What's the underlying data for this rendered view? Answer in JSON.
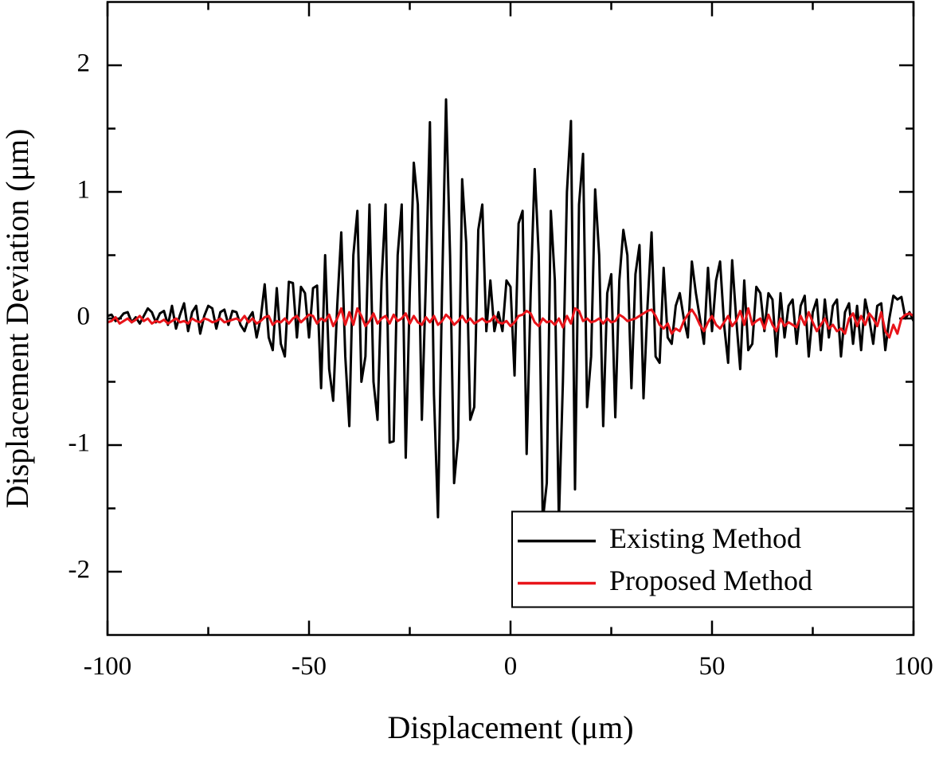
{
  "chart_data": {
    "type": "line",
    "xlabel": "Displacement (μm)",
    "ylabel": "Displacement Deviation (μm)",
    "xlim": [
      -100,
      100
    ],
    "xticks": [
      -100,
      -50,
      0,
      50,
      100
    ],
    "xminor": [
      -75,
      -25,
      25,
      75
    ],
    "ylim": [
      -2.5,
      2.5
    ],
    "yticks": [
      -2,
      -1,
      0,
      1,
      2
    ],
    "yminor": [
      -1.5,
      -0.5,
      0.5,
      1.5
    ],
    "legend": "lower right",
    "x": [
      -100,
      -99,
      -98,
      -97,
      -96,
      -95,
      -94,
      -93,
      -92,
      -91,
      -90,
      -89,
      -88,
      -87,
      -86,
      -85,
      -84,
      -83,
      -82,
      -81,
      -80,
      -79,
      -78,
      -77,
      -76,
      -75,
      -74,
      -73,
      -72,
      -71,
      -70,
      -69,
      -68,
      -67,
      -66,
      -65,
      -64,
      -63,
      -62,
      -61,
      -60,
      -59,
      -58,
      -57,
      -56,
      -55,
      -54,
      -53,
      -52,
      -51,
      -50,
      -49,
      -48,
      -47,
      -46,
      -45,
      -44,
      -43,
      -42,
      -41,
      -40,
      -39,
      -38,
      -37,
      -36,
      -35,
      -34,
      -33,
      -32,
      -31,
      -30,
      -29,
      -28,
      -27,
      -26,
      -25,
      -24,
      -23,
      -22,
      -21,
      -20,
      -19,
      -18,
      -17,
      -16,
      -15,
      -14,
      -13,
      -12,
      -11,
      -10,
      -9,
      -8,
      -7,
      -6,
      -5,
      -4,
      -3,
      -2,
      -1,
      0,
      1,
      2,
      3,
      4,
      5,
      6,
      7,
      8,
      9,
      10,
      11,
      12,
      13,
      14,
      15,
      16,
      17,
      18,
      19,
      20,
      21,
      22,
      23,
      24,
      25,
      26,
      27,
      28,
      29,
      30,
      31,
      32,
      33,
      34,
      35,
      36,
      37,
      38,
      39,
      40,
      41,
      42,
      43,
      44,
      45,
      46,
      47,
      48,
      49,
      50,
      51,
      52,
      53,
      54,
      55,
      56,
      57,
      58,
      59,
      60,
      61,
      62,
      63,
      64,
      65,
      66,
      67,
      68,
      69,
      70,
      71,
      72,
      73,
      74,
      75,
      76,
      77,
      78,
      79,
      80,
      81,
      82,
      83,
      84,
      85,
      86,
      87,
      88,
      89,
      90,
      91,
      92,
      93,
      94,
      95,
      96,
      97,
      98,
      99,
      100
    ],
    "series": [
      {
        "name": "Existing Method",
        "color": "#000000",
        "values": [
          0.02,
          0.03,
          -0.02,
          0.0,
          0.04,
          0.05,
          -0.03,
          0.01,
          -0.04,
          0.02,
          0.08,
          0.05,
          -0.03,
          0.04,
          0.06,
          -0.05,
          0.1,
          -0.08,
          0.03,
          0.12,
          -0.1,
          0.05,
          0.1,
          -0.12,
          0.02,
          0.1,
          0.08,
          -0.08,
          0.05,
          0.07,
          -0.05,
          0.06,
          0.05,
          -0.05,
          -0.1,
          0.0,
          0.05,
          -0.15,
          0.0,
          0.27,
          -0.15,
          -0.25,
          0.24,
          -0.2,
          -0.3,
          0.29,
          0.28,
          -0.15,
          0.25,
          0.2,
          -0.15,
          0.24,
          0.26,
          -0.55,
          0.5,
          -0.4,
          -0.65,
          0.1,
          0.68,
          -0.3,
          -0.85,
          0.5,
          0.85,
          -0.5,
          -0.3,
          0.9,
          -0.5,
          -0.8,
          0.3,
          0.9,
          -0.98,
          -0.97,
          0.5,
          0.9,
          -1.1,
          0.2,
          1.23,
          0.9,
          -0.8,
          0.3,
          1.55,
          -0.6,
          -1.57,
          0.2,
          1.73,
          0.5,
          -1.3,
          -0.95,
          1.1,
          0.6,
          -0.8,
          -0.7,
          0.7,
          0.9,
          -0.1,
          0.3,
          -0.1,
          0.05,
          -0.1,
          0.3,
          0.25,
          -0.45,
          0.75,
          0.85,
          -1.07,
          0.2,
          1.18,
          0.5,
          -1.6,
          -1.3,
          0.85,
          0.3,
          -1.6,
          -0.5,
          1.0,
          1.56,
          -1.35,
          0.9,
          1.3,
          -0.7,
          -0.3,
          1.02,
          0.5,
          -0.85,
          0.2,
          0.35,
          -0.78,
          0.3,
          0.7,
          0.5,
          -0.55,
          0.35,
          0.58,
          -0.63,
          0.1,
          0.68,
          -0.3,
          -0.35,
          0.4,
          -0.15,
          -0.2,
          0.1,
          0.2,
          0.0,
          -0.15,
          0.45,
          0.2,
          0.0,
          -0.2,
          0.4,
          -0.1,
          0.3,
          0.45,
          -0.05,
          -0.35,
          0.46,
          0.0,
          -0.4,
          0.3,
          -0.25,
          -0.2,
          0.25,
          0.2,
          -0.1,
          0.2,
          0.15,
          -0.3,
          0.2,
          -0.15,
          0.1,
          0.15,
          -0.2,
          0.1,
          0.18,
          -0.3,
          0.05,
          0.15,
          -0.25,
          0.15,
          -0.15,
          0.1,
          0.15,
          -0.3,
          0.05,
          0.12,
          -0.2,
          0.1,
          -0.25,
          0.15,
          0.0,
          -0.2,
          0.1,
          0.12,
          -0.25,
          0.0,
          0.18,
          0.15,
          0.17,
          0.0,
          0.05,
          -0.02
        ]
      },
      {
        "name": "Proposed Method",
        "color": "#e8141a",
        "values": [
          -0.03,
          -0.02,
          0.01,
          -0.04,
          -0.02,
          0.0,
          -0.03,
          -0.01,
          0.02,
          -0.02,
          0.0,
          -0.04,
          -0.02,
          -0.03,
          -0.01,
          -0.04,
          -0.02,
          0.0,
          -0.03,
          -0.02,
          -0.04,
          0.0,
          -0.02,
          -0.03,
          0.0,
          -0.01,
          -0.03,
          -0.02,
          0.0,
          -0.03,
          -0.02,
          -0.01,
          0.0,
          -0.02,
          0.02,
          -0.03,
          0.0,
          -0.04,
          -0.02,
          0.01,
          0.02,
          -0.05,
          -0.02,
          -0.03,
          0.0,
          -0.04,
          0.0,
          0.02,
          -0.03,
          0.0,
          0.03,
          0.02,
          -0.04,
          0.0,
          -0.02,
          0.03,
          -0.06,
          0.0,
          0.08,
          -0.05,
          0.05,
          -0.05,
          0.08,
          0.02,
          -0.06,
          -0.02,
          0.04,
          -0.04,
          0.0,
          0.02,
          -0.04,
          0.03,
          -0.02,
          0.0,
          0.04,
          -0.04,
          0.02,
          -0.03,
          -0.05,
          0.01,
          -0.03,
          0.02,
          -0.05,
          -0.02,
          0.03,
          0.0,
          -0.05,
          -0.02,
          0.02,
          -0.03,
          0.0,
          -0.04,
          -0.02,
          0.0,
          -0.03,
          -0.02,
          0.02,
          -0.03,
          -0.04,
          -0.02,
          -0.06,
          -0.03,
          0.02,
          0.03,
          0.06,
          0.04,
          -0.03,
          -0.06,
          0.0,
          -0.03,
          -0.02,
          -0.05,
          0.0,
          -0.07,
          0.02,
          -0.04,
          0.08,
          0.06,
          -0.02,
          0.0,
          -0.03,
          -0.02,
          0.0,
          -0.04,
          0.0,
          -0.03,
          -0.02,
          0.03,
          0.01,
          -0.02,
          -0.01,
          0.0,
          0.02,
          0.04,
          0.06,
          0.07,
          0.02,
          -0.05,
          -0.08,
          -0.04,
          -0.12,
          -0.08,
          -0.1,
          -0.02,
          0.03,
          0.07,
          0.02,
          -0.05,
          -0.1,
          -0.03,
          0.02,
          -0.05,
          -0.08,
          -0.03,
          0.02,
          -0.06,
          -0.02,
          0.06,
          -0.05,
          0.08,
          -0.05,
          -0.02,
          0.0,
          -0.08,
          0.03,
          -0.05,
          -0.1,
          0.0,
          -0.06,
          -0.03,
          -0.05,
          -0.07,
          0.02,
          -0.05,
          0.05,
          -0.03,
          -0.1,
          -0.05,
          0.0,
          -0.08,
          -0.05,
          -0.1,
          -0.08,
          -0.12,
          0.0,
          0.04,
          -0.06,
          0.02,
          -0.05,
          0.04,
          0.0,
          -0.06,
          0.05,
          -0.1,
          -0.15,
          -0.05,
          -0.12,
          0.0,
          0.03,
          0.04,
          0.02
        ]
      }
    ]
  }
}
